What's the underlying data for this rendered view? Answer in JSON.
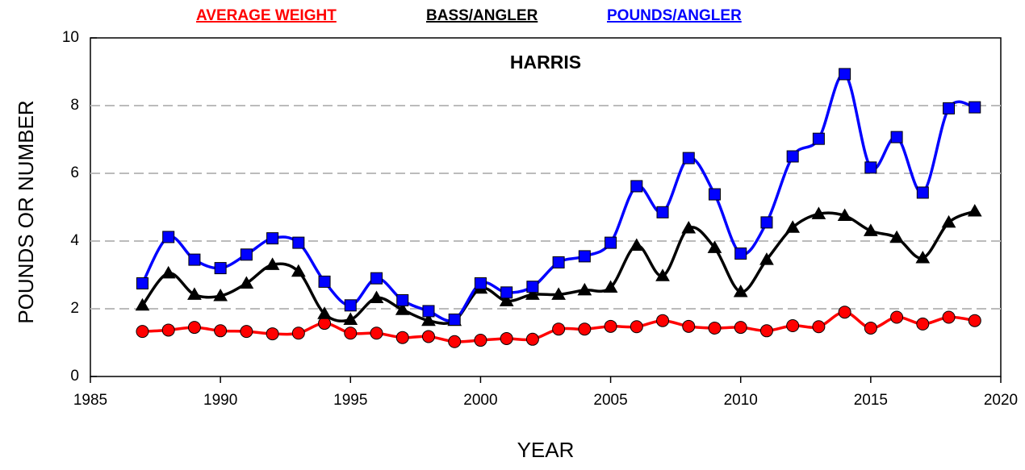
{
  "chart_data": {
    "type": "line",
    "title": "HARRIS",
    "x_label": "YEAR",
    "y_label": "POUNDS OR NUMBER",
    "x": [
      1987,
      1988,
      1989,
      1990,
      1991,
      1992,
      1993,
      1994,
      1995,
      1996,
      1997,
      1998,
      1999,
      2000,
      2001,
      2002,
      2003,
      2004,
      2005,
      2006,
      2007,
      2008,
      2009,
      2010,
      2011,
      2012,
      2013,
      2014,
      2015,
      2016,
      2017,
      2018,
      2019
    ],
    "series": [
      {
        "name": "AVERAGE WEIGHT",
        "color": "#ff0000",
        "marker": "circle",
        "values": [
          1.33,
          1.37,
          1.45,
          1.35,
          1.33,
          1.26,
          1.28,
          1.57,
          1.28,
          1.28,
          1.15,
          1.18,
          1.03,
          1.07,
          1.12,
          1.1,
          1.4,
          1.4,
          1.48,
          1.47,
          1.65,
          1.48,
          1.43,
          1.45,
          1.35,
          1.5,
          1.47,
          1.9,
          1.43,
          1.75,
          1.55,
          1.75,
          1.65
        ]
      },
      {
        "name": "BASS/ANGLER",
        "color": "#000000",
        "marker": "triangle",
        "values": [
          2.1,
          3.05,
          2.42,
          2.38,
          2.75,
          3.3,
          3.1,
          1.85,
          1.68,
          2.32,
          1.97,
          1.65,
          1.65,
          2.6,
          2.23,
          2.42,
          2.42,
          2.55,
          2.63,
          3.87,
          2.97,
          4.38,
          3.8,
          2.5,
          3.45,
          4.4,
          4.8,
          4.75,
          4.3,
          4.1,
          3.5,
          4.55,
          4.88
        ]
      },
      {
        "name": "POUNDS/ANGLER",
        "color": "#0000ff",
        "marker": "square",
        "values": [
          2.75,
          4.12,
          3.45,
          3.2,
          3.6,
          4.08,
          3.95,
          2.8,
          2.1,
          2.9,
          2.25,
          1.93,
          1.68,
          2.75,
          2.48,
          2.65,
          3.37,
          3.55,
          3.95,
          5.62,
          4.85,
          6.45,
          5.38,
          3.63,
          4.55,
          6.5,
          7.02,
          8.93,
          6.17,
          7.07,
          5.43,
          7.92,
          7.95
        ]
      }
    ],
    "xlim": [
      1985,
      2020
    ],
    "xticks": [
      1985,
      1990,
      1995,
      2000,
      2005,
      2010,
      2015,
      2020
    ],
    "ylim": [
      0,
      10
    ],
    "yticks": [
      0,
      2,
      4,
      6,
      8,
      10
    ],
    "grid": true,
    "smooth": true,
    "legend": "top"
  }
}
